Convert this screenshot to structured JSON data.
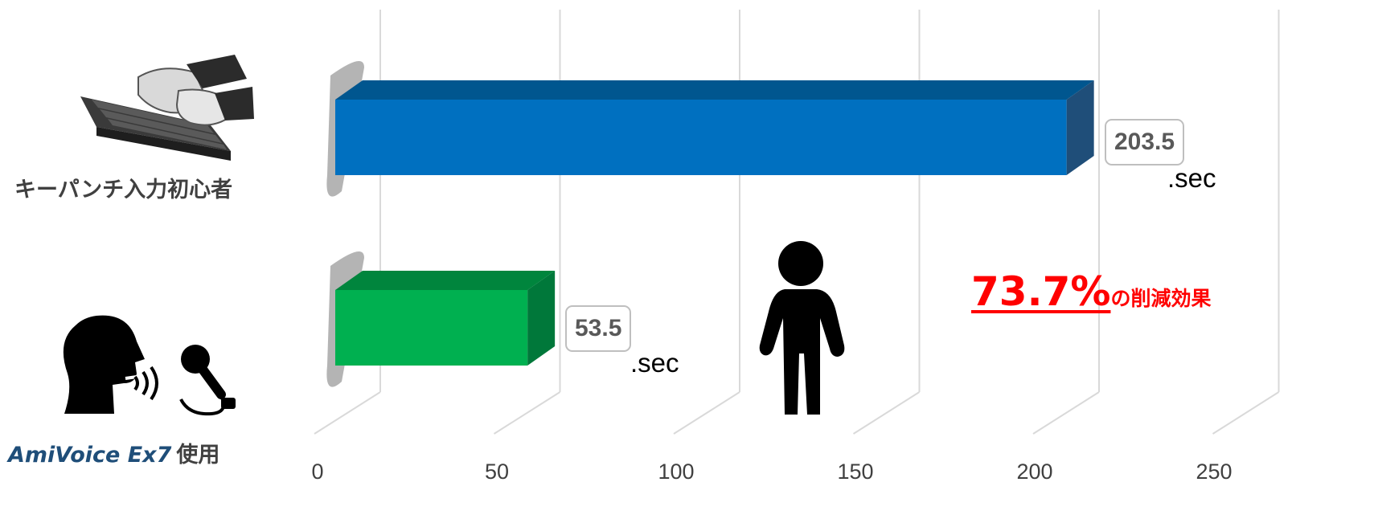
{
  "chart_data": {
    "type": "bar",
    "orientation": "horizontal",
    "style": "3d",
    "categories": [
      "キーパンチ入力初心者",
      "AmiVoice Ex7 使用"
    ],
    "values": [
      203.5,
      53.5
    ],
    "data_labels": [
      "203.5",
      "53.5"
    ],
    "unit_label": ".sec",
    "xlim": [
      0,
      250
    ],
    "x_ticks": [
      "0",
      "50",
      "100",
      "150",
      "200",
      "250"
    ],
    "grid": true,
    "bar_colors": [
      "#0070c0",
      "#00b050"
    ],
    "title": "",
    "xlabel": "",
    "ylabel": ""
  },
  "labels": {
    "category1": "キーパンチ入力初心者",
    "category2_brand": "AmiVoice Ex7",
    "category2_suffix": "使用"
  },
  "annotation": {
    "percent": "73.7%",
    "suffix": "の削減効果",
    "color": "#ff0000"
  },
  "icons": [
    "keyboard-typing-icon",
    "person-speaking-icon",
    "microphone-icon",
    "standing-person-icon"
  ]
}
